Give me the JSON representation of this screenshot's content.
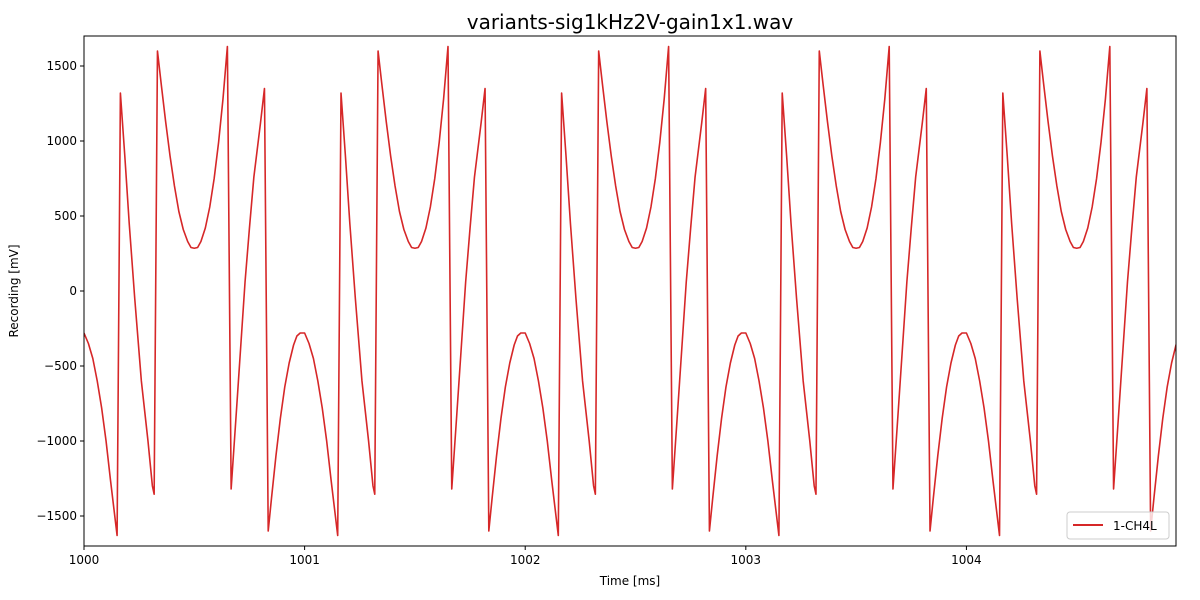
{
  "chart_data": {
    "type": "line",
    "title": "variants-sig1kHz2V-gain1x1.wav",
    "xlabel": "Time [ms]",
    "ylabel": "Recording [mV]",
    "xlim": [
      1000,
      1004.95
    ],
    "ylim": [
      -1700,
      1700
    ],
    "x_ticks": [
      1000,
      1001,
      1002,
      1003,
      1004
    ],
    "x_tick_labels": [
      "1000",
      "1001",
      "1002",
      "1003",
      "1004"
    ],
    "y_ticks": [
      -1500,
      -1000,
      -500,
      0,
      500,
      1000,
      1500
    ],
    "y_tick_labels": [
      "−1500",
      "−1000",
      "−500",
      "0",
      "500",
      "1000",
      "1500"
    ],
    "grid": false,
    "legend": "bottom-right",
    "series": [
      {
        "name": "1-CH4L",
        "color": "#d62728",
        "period_ms": 1.0,
        "points": [
          [
            0.0,
            -280
          ],
          [
            0.02,
            -350
          ],
          [
            0.04,
            -450
          ],
          [
            0.06,
            -600
          ],
          [
            0.08,
            -780
          ],
          [
            0.1,
            -1000
          ],
          [
            0.12,
            -1260
          ],
          [
            0.15,
            -1630
          ],
          [
            0.165,
            1320
          ],
          [
            0.185,
            900
          ],
          [
            0.205,
            450
          ],
          [
            0.23,
            -50
          ],
          [
            0.26,
            -600
          ],
          [
            0.29,
            -1000
          ],
          [
            0.31,
            -1300
          ],
          [
            0.318,
            -1355
          ],
          [
            0.333,
            1600
          ],
          [
            0.35,
            1380
          ],
          [
            0.37,
            1130
          ],
          [
            0.39,
            900
          ],
          [
            0.41,
            700
          ],
          [
            0.43,
            530
          ],
          [
            0.45,
            410
          ],
          [
            0.47,
            330
          ],
          [
            0.485,
            290
          ],
          [
            0.5,
            285
          ],
          [
            0.515,
            290
          ],
          [
            0.53,
            330
          ],
          [
            0.55,
            420
          ],
          [
            0.57,
            560
          ],
          [
            0.59,
            750
          ],
          [
            0.61,
            990
          ],
          [
            0.63,
            1280
          ],
          [
            0.65,
            1630
          ],
          [
            0.667,
            -1320
          ],
          [
            0.69,
            -820
          ],
          [
            0.71,
            -380
          ],
          [
            0.73,
            60
          ],
          [
            0.75,
            420
          ],
          [
            0.77,
            760
          ],
          [
            0.8,
            1120
          ],
          [
            0.818,
            1350
          ],
          [
            0.835,
            -1600
          ],
          [
            0.85,
            -1380
          ],
          [
            0.87,
            -1100
          ],
          [
            0.89,
            -850
          ],
          [
            0.91,
            -640
          ],
          [
            0.93,
            -480
          ],
          [
            0.95,
            -360
          ],
          [
            0.965,
            -300
          ],
          [
            0.98,
            -280
          ],
          [
            1.0,
            -280
          ]
        ]
      }
    ]
  }
}
